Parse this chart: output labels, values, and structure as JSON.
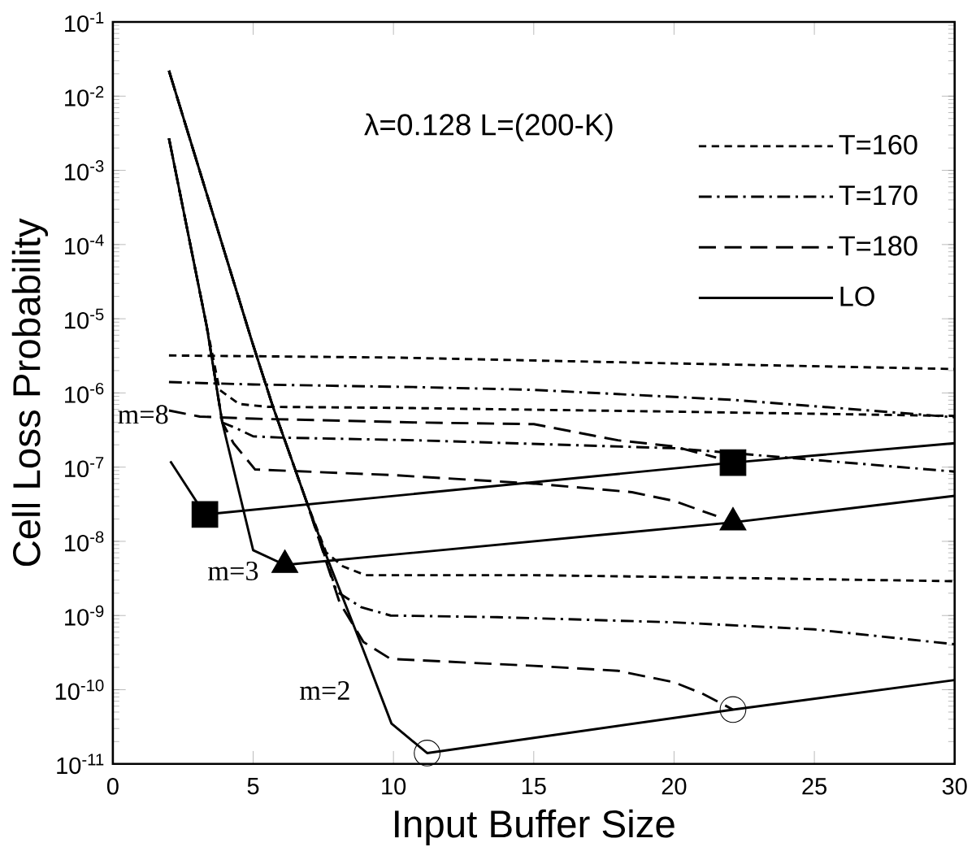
{
  "chart_data": {
    "type": "line",
    "xlabel": "Input Buffer Size",
    "ylabel": "Cell Loss Probability",
    "log": "y",
    "legend": "top right",
    "xlim": [
      0,
      30
    ],
    "xticks": [
      0,
      5,
      10,
      15,
      20,
      25,
      30
    ],
    "ylim": [
      1e-11,
      0.1
    ],
    "yticks": [
      {
        "value": 1e-11,
        "label": "10$^{-11}$"
      },
      {
        "value": 1e-10,
        "label": "10$^{-10}$"
      },
      {
        "value": 1e-09,
        "label": "10$^{-9}$"
      },
      {
        "value": 1e-08,
        "label": "10$^{-8}$"
      },
      {
        "value": 1e-07,
        "label": "10$^{-7}$"
      },
      {
        "value": 1e-06,
        "label": "10$^{-6}$"
      },
      {
        "value": 1e-05,
        "label": "10$^{-5}$"
      },
      {
        "value": 0.0001,
        "label": "10$^{-4}$"
      },
      {
        "value": 0.001,
        "label": "10$^{-3}$"
      },
      {
        "value": 0.01,
        "label": "10$^{-2}$"
      },
      {
        "value": 0.1,
        "label": "10$^{-1}$"
      }
    ],
    "annotations": [
      "λ=0.128   L=(200-K)",
      "m=8",
      "m=3",
      "m=2"
    ],
    "series": [
      {
        "name": "T=160",
        "color": "#000000",
        "line_style": "dotted",
        "x": [
          2,
          10,
          20,
          30
        ],
        "values": [
          3.2e-06,
          3e-06,
          2.5e-06,
          2.1e-06
        ]
      },
      {
        "name": "T=170",
        "color": "#000000",
        "line_style": "dashdot",
        "x": [
          2,
          5,
          10.8,
          15,
          22,
          26,
          30
        ],
        "values": [
          1.4e-06,
          1.3e-06,
          1.2e-06,
          1.1e-06,
          8.1e-07,
          6.2e-07,
          4.7e-07
        ]
      },
      {
        "name": "T=180",
        "color": "#000000",
        "line_style": "dashed",
        "x": [
          2,
          3.1,
          5,
          10.8,
          15,
          18,
          20,
          21.5
        ],
        "values": [
          5.8e-07,
          4.8e-07,
          4.5e-07,
          4e-07,
          3.8e-07,
          2.3e-07,
          1.9e-07,
          1.35e-07
        ]
      },
      {
        "name": "LO",
        "color": "#000000",
        "line_style": "solid",
        "x": [
          2.05,
          3.28,
          22.1,
          30
        ],
        "values": [
          1.2e-07,
          2.3e-08,
          1.15e-07,
          2.1e-07
        ]
      },
      {
        "color": "#000000",
        "line_style": "dotted",
        "x": [
          2,
          3.34,
          3.8,
          4.5,
          5.5,
          10,
          20,
          30
        ],
        "values": [
          0.0027,
          8.1e-06,
          1.1e-06,
          7.1e-07,
          6.5e-07,
          6.3e-07,
          5.6e-07,
          4.9e-07
        ]
      },
      {
        "color": "#000000",
        "line_style": "dashdot",
        "x": [
          2,
          3.34,
          3.9,
          4.43,
          5.0,
          6,
          10.8,
          20,
          30
        ],
        "values": [
          0.0027,
          8.1e-06,
          4e-07,
          3.3e-07,
          2.6e-07,
          2.5e-07,
          2.3e-07,
          1.8e-07,
          8.7e-08
        ]
      },
      {
        "color": "#000000",
        "line_style": "dashed",
        "x": [
          2,
          3.34,
          3.9,
          4.3,
          5.07,
          10,
          15,
          18.5,
          20,
          21.5
        ],
        "values": [
          0.0027,
          8.1e-06,
          4e-07,
          2.1e-07,
          9.3e-08,
          7.8e-08,
          6e-08,
          4.6e-08,
          3.5e-08,
          2.2e-08
        ]
      },
      {
        "color": "#000000",
        "line_style": "solid",
        "x": [
          2,
          3.34,
          3.9,
          5.0,
          6.13,
          22.1,
          30
        ],
        "values": [
          0.0027,
          8.1e-06,
          4e-07,
          7.6e-09,
          4.8e-09,
          1.8e-08,
          4.1e-08
        ]
      },
      {
        "color": "#000000",
        "line_style": "dotted",
        "x": [
          2,
          4.94,
          5.7,
          6.93,
          7.6,
          8.2,
          9.0,
          15,
          20,
          30
        ],
        "values": [
          0.022,
          5.2e-06,
          6.6e-07,
          3.2e-08,
          7.1e-09,
          4.6e-09,
          3.5e-09,
          3.5e-09,
          3.3e-09,
          2.9e-09
        ]
      },
      {
        "color": "#000000",
        "line_style": "dashdot",
        "x": [
          2,
          4.94,
          5.7,
          6.93,
          7.98,
          8.84,
          9.9,
          13.7,
          20,
          25,
          30
        ],
        "values": [
          0.022,
          5.2e-06,
          6.6e-07,
          3.2e-08,
          2.1e-09,
          1.3e-09,
          1e-09,
          9.5e-10,
          8.1e-10,
          6.5e-10,
          4.1e-10
        ]
      },
      {
        "color": "#000000",
        "line_style": "dashed",
        "x": [
          2,
          4.94,
          5.7,
          6.93,
          8.08,
          8.93,
          9.9,
          15,
          18,
          20,
          21,
          22.1
        ],
        "values": [
          0.022,
          5.2e-06,
          6.6e-07,
          3.2e-08,
          1.5e-09,
          4.4e-10,
          2.6e-10,
          2.1e-10,
          1.8e-10,
          1.26e-10,
          8.9e-11,
          5.4e-11
        ]
      },
      {
        "color": "#000000",
        "line_style": "solid",
        "x": [
          2,
          4.94,
          5.7,
          6.93,
          7.6,
          8.93,
          9.93,
          11.2,
          22.1,
          30
        ],
        "values": [
          0.022,
          5.2e-06,
          6.6e-07,
          3.2e-08,
          6.5e-09,
          3.4e-10,
          3.5e-11,
          1.4e-11,
          5.4e-11,
          1.35e-10
        ]
      },
      {
        "type": "scatter",
        "color": "#000000",
        "marker": "square",
        "x": [
          3.28,
          22.1
        ],
        "values": [
          2.3e-08,
          1.15e-07
        ]
      },
      {
        "type": "scatter",
        "color": "#000000",
        "marker": "triangle",
        "x": [
          6.13,
          22.1
        ],
        "values": [
          4.8e-09,
          1.8e-08
        ]
      },
      {
        "type": "scatter",
        "color": "#000000",
        "marker": "circle",
        "x": [
          11.2,
          22.1
        ],
        "values": [
          1.4e-11,
          5.4e-11
        ]
      }
    ]
  }
}
